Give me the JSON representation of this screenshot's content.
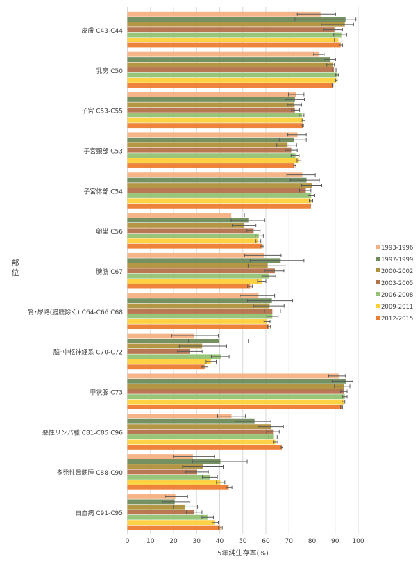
{
  "chart_data": {
    "type": "bar",
    "orientation": "horizontal",
    "title": "",
    "xlabel": "5年純生存率(%)",
    "ylabel": "部位",
    "xlim": [
      0,
      100
    ],
    "xticks": [
      0,
      10,
      20,
      30,
      40,
      50,
      60,
      70,
      80,
      90,
      100
    ],
    "grid": true,
    "legend_position": "right",
    "error_bars": true,
    "categories": [
      "皮膚 C43-C44",
      "乳房 C50",
      "子宮 C53-C55",
      "子宮頸部 C53",
      "子宮体部 C54",
      "卵巣 C56",
      "膀胱 C67",
      "腎･尿路(膀胱除く) C64-C66 C68",
      "脳･中枢神経系 C70-C72",
      "甲状腺 C73",
      "悪性リンパ腫 C81-C85 C96",
      "多発性骨髄腫 C88-C90",
      "白血病 C91-C95"
    ],
    "series": [
      {
        "name": "1993-1996",
        "color": "#f4b183",
        "values": [
          83.7,
          83.2,
          73.1,
          73.7,
          75.8,
          45.0,
          59.1,
          56.8,
          29.0,
          91.8,
          45.1,
          28.4,
          20.8
        ],
        "ci": [
          [
            73.6,
            90.2
          ],
          [
            80.7,
            85.2
          ],
          [
            69.8,
            76.5
          ],
          [
            69.5,
            77.5
          ],
          [
            69.1,
            81.4
          ],
          [
            39.7,
            50.7
          ],
          [
            50.8,
            66.6
          ],
          [
            48.8,
            63.8
          ],
          [
            19.2,
            39.4
          ],
          [
            87.2,
            94.4
          ],
          [
            39.1,
            51.1
          ],
          [
            19.9,
            37.7
          ],
          [
            16.4,
            26.1
          ]
        ]
      },
      {
        "name": "1997-1999",
        "color": "#6e8b5a",
        "values": [
          94.5,
          88.0,
          72.6,
          72.2,
          77.6,
          52.4,
          66.4,
          62.6,
          39.6,
          94.8,
          55.1,
          40.3,
          20.5
        ],
        "ci": [
          [
            72.6,
            99.0
          ],
          [
            85.2,
            90.2
          ],
          [
            68.3,
            76.7
          ],
          [
            65.8,
            77.5
          ],
          [
            70.6,
            83.2
          ],
          [
            45.0,
            59.5
          ],
          [
            53.2,
            76.5
          ],
          [
            52.0,
            71.6
          ],
          [
            26.5,
            52.4
          ],
          [
            88.7,
            97.7
          ],
          [
            46.6,
            62.2
          ],
          [
            28.2,
            51.9
          ],
          [
            15.1,
            27.1
          ]
        ]
      },
      {
        "name": "2000-2002",
        "color": "#b0913b",
        "values": [
          94.2,
          89.2,
          72.4,
          69.4,
          80.1,
          50.7,
          60.8,
          61.6,
          32.4,
          93.7,
          62.3,
          32.7,
          24.8
        ],
        "ci": [
          [
            84.0,
            98.0
          ],
          [
            86.4,
            89.7
          ],
          [
            69.3,
            75.5
          ],
          [
            64.7,
            73.3
          ],
          [
            75.5,
            84.2
          ],
          [
            45.4,
            55.7
          ],
          [
            52.3,
            68.3
          ],
          [
            54.6,
            67.9
          ],
          [
            22.5,
            43.0
          ],
          [
            89.7,
            96.4
          ],
          [
            56.6,
            67.6
          ],
          [
            23.9,
            41.5
          ],
          [
            19.9,
            30.4
          ]
        ]
      },
      {
        "name": "2003-2005",
        "color": "#b5714b",
        "values": [
          89.7,
          89.5,
          72.6,
          71.0,
          77.3,
          54.7,
          63.9,
          62.8,
          27.2,
          93.9,
          63.1,
          30.2,
          29.0
        ],
        "ci": [
          [
            84.9,
            93.2
          ],
          [
            88.9,
            90.4
          ],
          [
            71.1,
            74.6
          ],
          [
            68.3,
            73.6
          ],
          [
            74.6,
            79.5
          ],
          [
            51.8,
            57.5
          ],
          [
            59.4,
            67.8
          ],
          [
            59.4,
            66.3
          ],
          [
            21.7,
            32.4
          ],
          [
            92.4,
            95.2
          ],
          [
            60.3,
            65.8
          ],
          [
            25.3,
            35.1
          ],
          [
            25.6,
            32.3
          ]
        ]
      },
      {
        "name": "2006-2008",
        "color": "#93c273",
        "values": [
          92.7,
          91.0,
          75.7,
          72.8,
          79.6,
          56.9,
          61.4,
          62.8,
          40.4,
          94.2,
          63.2,
          35.8,
          34.7
        ],
        "ci": [
          [
            89.4,
            95.0
          ],
          [
            90.2,
            91.4
          ],
          [
            74.4,
            76.5
          ],
          [
            70.9,
            74.4
          ],
          [
            78.2,
            81.2
          ],
          [
            55.4,
            58.9
          ],
          [
            58.3,
            64.3
          ],
          [
            60.4,
            65.3
          ],
          [
            36.4,
            44.1
          ],
          [
            93.2,
            95.2
          ],
          [
            61.3,
            64.9
          ],
          [
            32.5,
            39.0
          ],
          [
            32.3,
            37.3
          ]
        ]
      },
      {
        "name": "2009-2011",
        "color": "#ffd03c",
        "values": [
          91.4,
          90.5,
          76.2,
          74.1,
          79.6,
          56.7,
          58.4,
          60.6,
          36.2,
          93.7,
          64.1,
          40.3,
          38.0
        ],
        "ci": [
          [
            89.7,
            92.9
          ],
          [
            90.2,
            90.9
          ],
          [
            75.7,
            77.0
          ],
          [
            73.5,
            75.2
          ],
          [
            78.8,
            80.3
          ],
          [
            55.7,
            57.8
          ],
          [
            56.4,
            60.0
          ],
          [
            59.2,
            61.8
          ],
          [
            34.1,
            38.5
          ],
          [
            93.0,
            94.2
          ],
          [
            63.2,
            65.2
          ],
          [
            38.6,
            42.2
          ],
          [
            36.7,
            39.4
          ]
        ]
      },
      {
        "name": "2012-2015",
        "color": "#ed7d31",
        "values": [
          92.4,
          88.9,
          76.0,
          72.4,
          79.5,
          58.2,
          53.2,
          61.3,
          33.5,
          92.8,
          66.9,
          43.9,
          40.3
        ],
        "ci": [
          [
            91.7,
            93.2
          ],
          [
            88.7,
            89.1
          ],
          [
            75.7,
            76.3
          ],
          [
            72.1,
            73.0
          ],
          [
            79.2,
            80.0
          ],
          [
            57.5,
            58.8
          ],
          [
            52.1,
            54.1
          ],
          [
            60.7,
            62.0
          ],
          [
            32.3,
            34.9
          ],
          [
            92.4,
            93.2
          ],
          [
            66.6,
            67.3
          ],
          [
            42.8,
            45.3
          ],
          [
            39.5,
            41.1
          ]
        ]
      }
    ]
  }
}
